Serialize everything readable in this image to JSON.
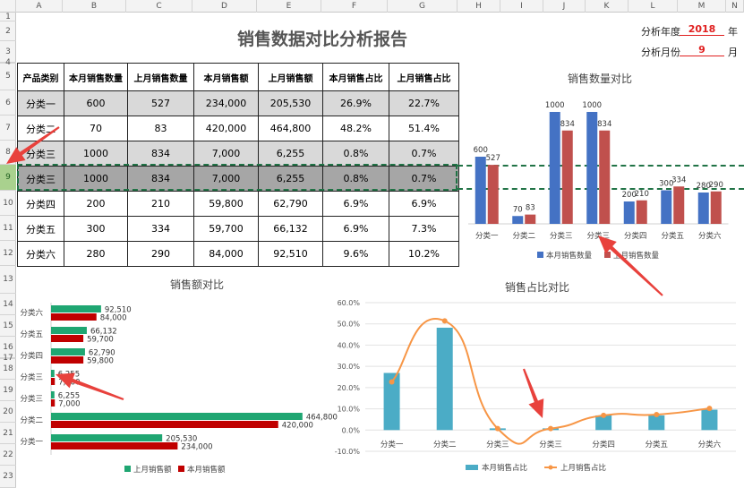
{
  "columns": [
    "A",
    "B",
    "C",
    "D",
    "E",
    "F",
    "G",
    "H",
    "I",
    "J",
    "K",
    "L",
    "M",
    "N"
  ],
  "rows": [
    "1",
    "2",
    "3",
    "4",
    "5",
    "6",
    "7",
    "8",
    "9",
    "10",
    "11",
    "12",
    "13",
    "14",
    "15",
    "16",
    "17",
    "18",
    "19",
    "20",
    "21",
    "22",
    "23"
  ],
  "selected_row": "9",
  "title": "销售数据对比分析报告",
  "meta": {
    "year_label": "分析年度",
    "year_value": "2018",
    "year_unit": "年",
    "month_label": "分析月份",
    "month_value": "9",
    "month_unit": "月"
  },
  "table": {
    "headers": [
      "产品类别",
      "本月销售数量",
      "上月销售数量",
      "本月销售额",
      "上月销售额",
      "本月销售占比",
      "上月销售占比"
    ],
    "rows": [
      [
        "分类一",
        "600",
        "527",
        "234,000",
        "205,530",
        "26.9%",
        "22.7%"
      ],
      [
        "分类二",
        "70",
        "83",
        "420,000",
        "464,800",
        "48.2%",
        "51.4%"
      ],
      [
        "分类三",
        "1000",
        "834",
        "7,000",
        "6,255",
        "0.8%",
        "0.7%"
      ],
      [
        "分类三",
        "1000",
        "834",
        "7,000",
        "6,255",
        "0.8%",
        "0.7%"
      ],
      [
        "分类四",
        "200",
        "210",
        "59,800",
        "62,790",
        "6.9%",
        "6.9%"
      ],
      [
        "分类五",
        "300",
        "334",
        "59,700",
        "66,132",
        "6.9%",
        "7.3%"
      ],
      [
        "分类六",
        "280",
        "290",
        "84,000",
        "92,510",
        "9.6%",
        "10.2%"
      ]
    ]
  },
  "colors": {
    "blue": "#4472c4",
    "red": "#c0504d",
    "green": "#1fa672",
    "darkred": "#c00000",
    "teal": "#4bacc6",
    "orange": "#f79646",
    "arrow": "#e8413c"
  },
  "chart_data": [
    {
      "type": "bar",
      "title": "销售数量对比",
      "categories": [
        "分类一",
        "分类二",
        "分类三",
        "分类三",
        "分类四",
        "分类五",
        "分类六"
      ],
      "series": [
        {
          "name": "本月销售数量",
          "values": [
            600,
            70,
            1000,
            1000,
            200,
            300,
            280
          ]
        },
        {
          "name": "上月销售数量",
          "values": [
            527,
            83,
            834,
            834,
            210,
            334,
            290
          ]
        }
      ],
      "legend": "bottom"
    },
    {
      "type": "bar",
      "orientation": "horizontal",
      "title": "销售额对比",
      "categories": [
        "分类六",
        "分类五",
        "分类四",
        "分类三",
        "分类三",
        "分类二",
        "分类一"
      ],
      "series": [
        {
          "name": "上月销售额",
          "values": [
            92510,
            66132,
            62790,
            6255,
            6255,
            464800,
            205530
          ],
          "labels": [
            "92,510",
            "66,132",
            "62,790",
            "6,255",
            "6,255",
            "464,800",
            "205,530"
          ]
        },
        {
          "name": "本月销售额",
          "values": [
            84000,
            59700,
            59800,
            7000,
            7000,
            420000,
            234000
          ],
          "labels": [
            "84,000",
            "59,700",
            "59,800",
            "7,000",
            "7,000",
            "420,000",
            "234,000"
          ]
        }
      ],
      "legend": "bottom"
    },
    {
      "type": "bar+line",
      "title": "销售占比对比",
      "categories": [
        "分类一",
        "分类二",
        "分类三",
        "分类三",
        "分类四",
        "分类五",
        "分类六"
      ],
      "series": [
        {
          "name": "本月销售占比",
          "type": "bar",
          "values": [
            26.9,
            48.2,
            0.8,
            0.8,
            6.9,
            6.9,
            9.6
          ]
        },
        {
          "name": "上月销售占比",
          "type": "line",
          "values": [
            22.7,
            51.4,
            0.7,
            0.7,
            6.9,
            7.3,
            10.2
          ]
        }
      ],
      "ylim": [
        -10,
        60
      ],
      "yticks": [
        "-10.0%",
        "0.0%",
        "10.0%",
        "20.0%",
        "30.0%",
        "40.0%",
        "50.0%",
        "60.0%"
      ],
      "grid": true,
      "legend": "bottom"
    }
  ]
}
